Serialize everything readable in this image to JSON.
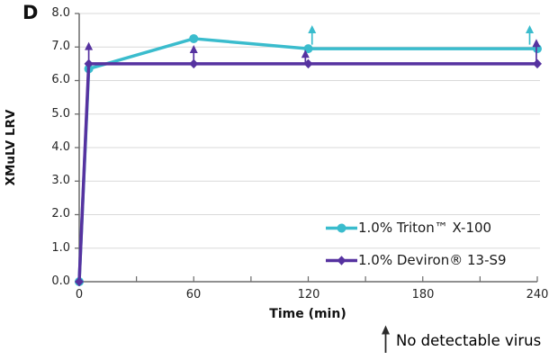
{
  "panel_label": "D",
  "chart_data": {
    "type": "line",
    "title": "",
    "xlabel": "Time (min)",
    "ylabel": "XMuLV LRV",
    "xlim": [
      0,
      240
    ],
    "ylim": [
      0,
      8
    ],
    "xticks": [
      "0",
      "60",
      "120",
      "180",
      "240"
    ],
    "xtick_values": [
      0,
      60,
      120,
      180,
      240
    ],
    "xtick_minor_step": 30,
    "yticks": [
      "8.0",
      "7.0",
      "6.0",
      "5.0",
      "4.0",
      "3.0",
      "2.0",
      "1.0",
      "0.0"
    ],
    "grid": "horizontal",
    "legend_position": "inside-bottom-right",
    "series": [
      {
        "name": "1.0% Triton™ X-100",
        "color": "#3ABCCD",
        "marker": "circle",
        "x": [
          0,
          5,
          60,
          120,
          240
        ],
        "y": [
          0,
          6.35,
          7.25,
          6.95,
          6.95
        ],
        "arrows": [
          {
            "x": 122,
            "y_from": 7.07,
            "y_to": 7.65
          },
          {
            "x": 236,
            "y_from": 7.07,
            "y_to": 7.65
          }
        ]
      },
      {
        "name": "1.0% Deviron® 13-S9",
        "color": "#5632A0",
        "marker": "diamond",
        "x": [
          0,
          5,
          60,
          120,
          240
        ],
        "y": [
          0,
          6.5,
          6.5,
          6.5,
          6.5
        ],
        "arrows": [
          {
            "x": 5,
            "y_from": 6.5,
            "y_to": 7.15
          },
          {
            "x": 60,
            "y_from": 6.5,
            "y_to": 7.06
          },
          {
            "x": 118.5,
            "y_from": 6.5,
            "y_to": 6.92
          },
          {
            "x": 239.5,
            "y_from": 6.5,
            "y_to": 7.24
          }
        ]
      }
    ],
    "annotation": {
      "symbol": "up-arrow",
      "text": "No detectable virus"
    }
  },
  "colors": {
    "grid": "#D9D9D9",
    "axis": "#6B6B6B",
    "annotation_arrow": "#2B2B2B"
  }
}
